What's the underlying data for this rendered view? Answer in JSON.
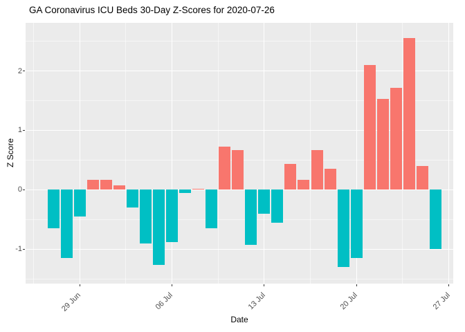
{
  "chart": {
    "title": "GA Coronavirus ICU Beds 30-Day Z-Scores for 2020-07-26",
    "xlabel": "Date",
    "ylabel": "Z Score"
  },
  "chart_data": {
    "type": "bar",
    "title": "GA Coronavirus ICU Beds 30-Day Z-Scores for 2020-07-26",
    "xlabel": "Date",
    "ylabel": "Z Score",
    "categories": [
      "2020-06-27",
      "2020-06-28",
      "2020-06-29",
      "2020-06-30",
      "2020-07-01",
      "2020-07-02",
      "2020-07-03",
      "2020-07-04",
      "2020-07-05",
      "2020-07-06",
      "2020-07-07",
      "2020-07-08",
      "2020-07-09",
      "2020-07-10",
      "2020-07-11",
      "2020-07-12",
      "2020-07-13",
      "2020-07-14",
      "2020-07-15",
      "2020-07-16",
      "2020-07-17",
      "2020-07-18",
      "2020-07-19",
      "2020-07-20",
      "2020-07-21",
      "2020-07-22",
      "2020-07-23",
      "2020-07-24",
      "2020-07-25",
      "2020-07-26"
    ],
    "values": [
      -0.65,
      -1.15,
      -0.45,
      0.17,
      0.17,
      0.07,
      -0.3,
      -0.9,
      -1.27,
      -0.88,
      -0.05,
      0.02,
      -0.65,
      0.72,
      0.67,
      -0.93,
      -0.4,
      -0.55,
      0.43,
      0.17,
      0.67,
      0.35,
      -1.3,
      -1.15,
      2.1,
      1.53,
      1.72,
      2.55,
      0.4,
      -1.0
    ],
    "x_tick_labels": [
      "29 Jun",
      "06 Jul",
      "13 Jul",
      "20 Jul",
      "27 Jul"
    ],
    "y_tick_labels": [
      "-1",
      "0",
      "1",
      "2"
    ],
    "y_ticks": [
      -1,
      0,
      1,
      2
    ],
    "ylim": [
      -1.58,
      2.81
    ],
    "grid": true,
    "legend": "none",
    "colors": {
      "positive_bar": "#F8766D",
      "negative_bar": "#00BFC4",
      "panel_background": "#EBEBEB",
      "gridline": "#FFFFFF",
      "tick_text": "#4D4D4D"
    }
  }
}
